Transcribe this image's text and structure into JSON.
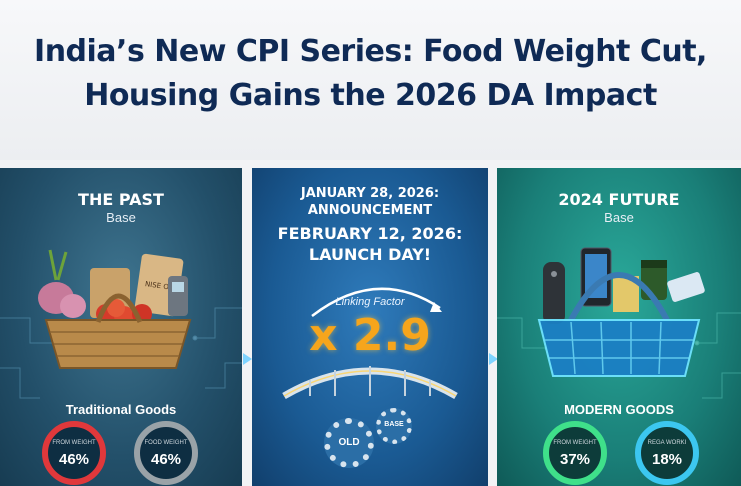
{
  "title": {
    "line1": "India’s New CPI Series: Food Weight Cut,",
    "line2": "Housing Gains the 2026 DA Impact"
  },
  "past": {
    "heading": "THE PAST",
    "sub": "Base",
    "goods_label": "Traditional Goods",
    "packet_label": "NISE OF",
    "ring1": {
      "caption": "FROM WEIGHT",
      "value": "46%"
    },
    "ring2": {
      "caption": "FOOD WEIGHT",
      "value": "46%"
    }
  },
  "middle": {
    "announce_date": "JANUARY 28, 2026:",
    "announce_label": "ANNOUNCEMENT",
    "launch_date": "FEBRUARY 12, 2026:",
    "launch_label": "LAUNCH DAY!",
    "linking_text": "Linking Factor",
    "factor": "x 2.9",
    "gear_old": "OLD",
    "gear_base": "BASE"
  },
  "future": {
    "heading": "2024 FUTURE",
    "sub": "Base",
    "goods_label": "MODERN GOODS",
    "ring1": {
      "caption": "FROM WEIGHT",
      "value": "37%"
    },
    "ring2": {
      "caption": "REGA WORKI",
      "value": "18%"
    }
  },
  "colors": {
    "title": "#0f2a55",
    "red_ring": "#e0383b",
    "gray_ring": "#9aa3a8",
    "green_ring": "#3fe08a",
    "blue_ring": "#3cc7f0",
    "factor": "#f6a51c"
  }
}
